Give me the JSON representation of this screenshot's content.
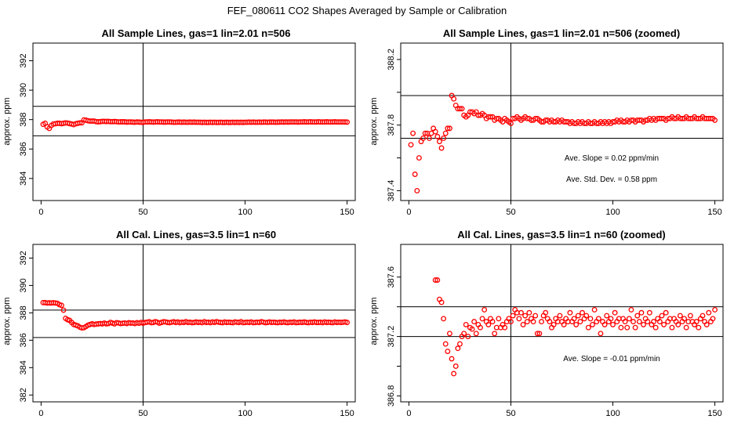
{
  "suptitle": "FEF_080611  CO2 Shapes Averaged by Sample or Calibration",
  "chart_data": [
    {
      "type": "scatter",
      "title": "All Sample Lines, gas=1 lin=2.01 n=506",
      "ylabel": "approx. ppm",
      "xlim": [
        -4,
        154
      ],
      "ylim": [
        382.5,
        393.2
      ],
      "xticks": [
        0,
        50,
        100,
        150
      ],
      "yticks": [
        384,
        386,
        388,
        390,
        392
      ],
      "vline": 50,
      "hlines": [
        386.9,
        388.9
      ],
      "annotations": [],
      "color": "#ff0000",
      "x": [
        1,
        2,
        3,
        4,
        5,
        6,
        7,
        8,
        9,
        10,
        11,
        12,
        13,
        14,
        15,
        16,
        17,
        18,
        19,
        20,
        21,
        22,
        23,
        24,
        25,
        26,
        27,
        28,
        29,
        30,
        31,
        32,
        33,
        34,
        35,
        36,
        37,
        38,
        39,
        40,
        41,
        42,
        43,
        44,
        45,
        46,
        47,
        48,
        49,
        50,
        51,
        52,
        53,
        54,
        55,
        56,
        57,
        58,
        59,
        60,
        61,
        62,
        63,
        64,
        65,
        66,
        67,
        68,
        69,
        70,
        71,
        72,
        73,
        74,
        75,
        76,
        77,
        78,
        79,
        80,
        81,
        82,
        83,
        84,
        85,
        86,
        87,
        88,
        89,
        90,
        91,
        92,
        93,
        94,
        95,
        96,
        97,
        98,
        99,
        100,
        101,
        102,
        103,
        104,
        105,
        106,
        107,
        108,
        109,
        110,
        111,
        112,
        113,
        114,
        115,
        116,
        117,
        118,
        119,
        120,
        121,
        122,
        123,
        124,
        125,
        126,
        127,
        128,
        129,
        130,
        131,
        132,
        133,
        134,
        135,
        136,
        137,
        138,
        139,
        140,
        141,
        142,
        143,
        144,
        145,
        146,
        147,
        148,
        149,
        150
      ],
      "y": [
        387.68,
        387.75,
        387.5,
        387.4,
        387.6,
        387.7,
        387.72,
        387.75,
        387.75,
        387.72,
        387.75,
        387.78,
        387.76,
        387.73,
        387.7,
        387.66,
        387.72,
        387.75,
        387.78,
        387.78,
        387.98,
        387.96,
        387.92,
        387.9,
        387.9,
        387.9,
        387.86,
        387.85,
        387.86,
        387.88,
        387.88,
        387.87,
        387.88,
        387.86,
        387.86,
        387.87,
        387.86,
        387.84,
        387.85,
        387.85,
        387.85,
        387.83,
        387.84,
        387.84,
        387.83,
        387.82,
        387.84,
        387.83,
        387.82,
        387.81,
        387.84,
        387.84,
        387.85,
        387.84,
        387.83,
        387.84,
        387.85,
        387.84,
        387.84,
        387.83,
        387.83,
        387.84,
        387.84,
        387.83,
        387.82,
        387.82,
        387.83,
        387.83,
        387.82,
        387.83,
        387.82,
        387.82,
        387.83,
        387.82,
        387.83,
        387.82,
        387.82,
        387.82,
        387.81,
        387.82,
        387.81,
        387.81,
        387.82,
        387.81,
        387.82,
        387.81,
        387.81,
        387.82,
        387.81,
        387.81,
        387.82,
        387.81,
        387.81,
        387.82,
        387.81,
        387.82,
        387.81,
        387.82,
        387.81,
        387.82,
        387.82,
        387.83,
        387.82,
        387.83,
        387.82,
        387.82,
        387.83,
        387.82,
        387.83,
        387.83,
        387.82,
        387.83,
        387.83,
        387.83,
        387.82,
        387.83,
        387.83,
        387.84,
        387.83,
        387.84,
        387.83,
        387.84,
        387.84,
        387.84,
        387.84,
        387.83,
        387.84,
        387.84,
        387.85,
        387.84,
        387.84,
        387.85,
        387.84,
        387.84,
        387.84,
        387.85,
        387.84,
        387.84,
        387.84,
        387.85,
        387.84,
        387.84,
        387.84,
        387.85,
        387.84,
        387.84,
        387.84,
        387.84,
        387.84,
        387.83
      ]
    },
    {
      "type": "scatter",
      "title": "All Sample Lines, gas=1 lin=2.01 n=506 (zoomed)",
      "ylabel": "approx. ppm",
      "xlim": [
        -4,
        154
      ],
      "ylim": [
        387.34,
        388.3
      ],
      "xticks": [
        0,
        50,
        100,
        150
      ],
      "yticks": [
        387.4,
        387.6,
        387.8,
        388.0,
        388.2
      ],
      "ytick_labels": [
        "387.4",
        "",
        "387.8",
        "",
        "388.2"
      ],
      "vline": 50,
      "hlines": [
        387.72,
        387.98
      ],
      "annotations": [
        "Ave. Slope =  0.02  ppm/min",
        "Ave. Std. Dev. =  0.58  ppm"
      ],
      "color": "#ff0000",
      "x": [
        1,
        2,
        3,
        4,
        5,
        6,
        7,
        8,
        9,
        10,
        11,
        12,
        13,
        14,
        15,
        16,
        17,
        18,
        19,
        20,
        21,
        22,
        23,
        24,
        25,
        26,
        27,
        28,
        29,
        30,
        31,
        32,
        33,
        34,
        35,
        36,
        37,
        38,
        39,
        40,
        41,
        42,
        43,
        44,
        45,
        46,
        47,
        48,
        49,
        50,
        51,
        52,
        53,
        54,
        55,
        56,
        57,
        58,
        59,
        60,
        61,
        62,
        63,
        64,
        65,
        66,
        67,
        68,
        69,
        70,
        71,
        72,
        73,
        74,
        75,
        76,
        77,
        78,
        79,
        80,
        81,
        82,
        83,
        84,
        85,
        86,
        87,
        88,
        89,
        90,
        91,
        92,
        93,
        94,
        95,
        96,
        97,
        98,
        99,
        100,
        101,
        102,
        103,
        104,
        105,
        106,
        107,
        108,
        109,
        110,
        111,
        112,
        113,
        114,
        115,
        116,
        117,
        118,
        119,
        120,
        121,
        122,
        123,
        124,
        125,
        126,
        127,
        128,
        129,
        130,
        131,
        132,
        133,
        134,
        135,
        136,
        137,
        138,
        139,
        140,
        141,
        142,
        143,
        144,
        145,
        146,
        147,
        148,
        149,
        150
      ],
      "y": [
        387.68,
        387.75,
        387.5,
        387.4,
        387.6,
        387.7,
        387.72,
        387.75,
        387.75,
        387.72,
        387.75,
        387.78,
        387.76,
        387.73,
        387.7,
        387.66,
        387.72,
        387.75,
        387.78,
        387.78,
        387.98,
        387.96,
        387.92,
        387.9,
        387.9,
        387.9,
        387.86,
        387.85,
        387.86,
        387.88,
        387.88,
        387.87,
        387.88,
        387.86,
        387.86,
        387.87,
        387.86,
        387.84,
        387.85,
        387.85,
        387.85,
        387.83,
        387.84,
        387.84,
        387.83,
        387.82,
        387.84,
        387.83,
        387.82,
        387.81,
        387.84,
        387.84,
        387.85,
        387.84,
        387.83,
        387.84,
        387.85,
        387.84,
        387.84,
        387.83,
        387.83,
        387.84,
        387.84,
        387.83,
        387.82,
        387.82,
        387.83,
        387.83,
        387.82,
        387.83,
        387.82,
        387.82,
        387.83,
        387.82,
        387.83,
        387.82,
        387.82,
        387.82,
        387.81,
        387.82,
        387.81,
        387.81,
        387.82,
        387.81,
        387.82,
        387.81,
        387.81,
        387.82,
        387.81,
        387.81,
        387.82,
        387.81,
        387.81,
        387.82,
        387.81,
        387.82,
        387.81,
        387.82,
        387.81,
        387.82,
        387.82,
        387.83,
        387.82,
        387.83,
        387.82,
        387.82,
        387.83,
        387.82,
        387.83,
        387.83,
        387.82,
        387.83,
        387.83,
        387.83,
        387.82,
        387.83,
        387.83,
        387.84,
        387.83,
        387.84,
        387.83,
        387.84,
        387.84,
        387.84,
        387.84,
        387.83,
        387.84,
        387.84,
        387.85,
        387.84,
        387.84,
        387.85,
        387.84,
        387.84,
        387.84,
        387.85,
        387.84,
        387.84,
        387.84,
        387.85,
        387.84,
        387.84,
        387.84,
        387.85,
        387.84,
        387.84,
        387.84,
        387.84,
        387.84,
        387.83
      ]
    },
    {
      "type": "scatter",
      "title": "All Cal. Lines, gas=3.5 lin=1 n=60",
      "ylabel": "approx. ppm",
      "xlim": [
        -4,
        154
      ],
      "ylim": [
        381.5,
        393.0
      ],
      "xticks": [
        0,
        50,
        100,
        150
      ],
      "yticks": [
        382,
        384,
        386,
        388,
        390,
        392
      ],
      "vline": 50,
      "hlines": [
        386.2,
        388.2
      ],
      "annotations": [],
      "color": "#ff0000",
      "x": [
        1,
        2,
        3,
        4,
        5,
        6,
        7,
        8,
        9,
        10,
        11,
        12,
        13,
        14,
        15,
        16,
        17,
        18,
        19,
        20,
        21,
        22,
        23,
        24,
        25,
        26,
        27,
        28,
        29,
        30,
        31,
        32,
        33,
        34,
        35,
        36,
        37,
        38,
        39,
        40,
        41,
        42,
        43,
        44,
        45,
        46,
        47,
        48,
        49,
        50,
        51,
        52,
        53,
        54,
        55,
        56,
        57,
        58,
        59,
        60,
        61,
        62,
        63,
        64,
        65,
        66,
        67,
        68,
        69,
        70,
        71,
        72,
        73,
        74,
        75,
        76,
        77,
        78,
        79,
        80,
        81,
        82,
        83,
        84,
        85,
        86,
        87,
        88,
        89,
        90,
        91,
        92,
        93,
        94,
        95,
        96,
        97,
        98,
        99,
        100,
        101,
        102,
        103,
        104,
        105,
        106,
        107,
        108,
        109,
        110,
        111,
        112,
        113,
        114,
        115,
        116,
        117,
        118,
        119,
        120,
        121,
        122,
        123,
        124,
        125,
        126,
        127,
        128,
        129,
        130,
        131,
        132,
        133,
        134,
        135,
        136,
        137,
        138,
        139,
        140,
        141,
        142,
        143,
        144,
        145,
        146,
        147,
        148,
        149,
        150
      ],
      "y": [
        388.75,
        388.75,
        388.72,
        388.73,
        388.72,
        388.74,
        388.72,
        388.7,
        388.6,
        388.55,
        388.2,
        387.6,
        387.5,
        387.45,
        387.3,
        387.15,
        387.1,
        387.05,
        386.95,
        386.9,
        386.92,
        387.0,
        387.1,
        387.15,
        387.2,
        387.15,
        387.18,
        387.2,
        387.22,
        387.2,
        387.25,
        387.2,
        387.22,
        387.3,
        387.25,
        387.2,
        387.28,
        387.26,
        387.22,
        387.24,
        387.26,
        387.22,
        387.28,
        387.25,
        387.26,
        387.22,
        387.28,
        387.24,
        387.3,
        387.25,
        387.3,
        387.32,
        387.35,
        387.28,
        387.3,
        387.36,
        387.32,
        387.25,
        387.3,
        387.35,
        387.34,
        387.3,
        387.28,
        387.32,
        387.35,
        387.3,
        387.34,
        387.28,
        387.32,
        387.3,
        387.36,
        387.3,
        387.32,
        387.28,
        387.3,
        387.34,
        387.3,
        387.32,
        387.28,
        387.36,
        387.3,
        387.32,
        387.28,
        387.34,
        387.3,
        387.36,
        387.32,
        387.3,
        387.28,
        387.34,
        387.3,
        387.32,
        387.3,
        387.28,
        387.34,
        387.32,
        387.3,
        387.36,
        387.28,
        387.3,
        387.32,
        387.3,
        387.34,
        387.28,
        387.3,
        387.32,
        387.3,
        387.36,
        387.32,
        387.28,
        387.3,
        387.34,
        387.3,
        387.32,
        387.3,
        387.28,
        387.32,
        387.3,
        387.34,
        387.3,
        387.28,
        387.32,
        387.3,
        387.34,
        387.28,
        387.3,
        387.32,
        387.3,
        387.34,
        387.3,
        387.28,
        387.32,
        387.3,
        387.34,
        387.3,
        387.3,
        387.32,
        387.28,
        387.34,
        387.3,
        387.32,
        387.3,
        387.28,
        387.34,
        387.3,
        387.32,
        387.3,
        387.32,
        387.34,
        387.3
      ]
    },
    {
      "type": "scatter",
      "title": "All Cal. Lines, gas=3.5 lin=1 n=60 (zoomed)",
      "ylabel": "approx. ppm",
      "xlim": [
        -4,
        154
      ],
      "ylim": [
        386.76,
        387.82
      ],
      "xticks": [
        0,
        50,
        100,
        150
      ],
      "yticks": [
        386.8,
        387.0,
        387.2,
        387.4,
        387.6
      ],
      "ytick_labels": [
        "386.8",
        "",
        "387.2",
        "",
        "387.6"
      ],
      "vline": 50,
      "hlines": [
        387.2,
        387.4
      ],
      "annotations": [
        "Ave. Slope =  -0.01  ppm/min"
      ],
      "color": "#ff0000",
      "x": [
        13,
        14,
        15,
        16,
        17,
        18,
        19,
        20,
        21,
        22,
        23,
        24,
        25,
        26,
        27,
        28,
        29,
        30,
        31,
        32,
        33,
        34,
        35,
        36,
        37,
        38,
        39,
        40,
        41,
        42,
        43,
        44,
        45,
        46,
        47,
        48,
        49,
        50,
        51,
        52,
        53,
        54,
        55,
        56,
        57,
        58,
        59,
        60,
        61,
        62,
        63,
        64,
        65,
        66,
        67,
        68,
        69,
        70,
        71,
        72,
        73,
        74,
        75,
        76,
        77,
        78,
        79,
        80,
        81,
        82,
        83,
        84,
        85,
        86,
        87,
        88,
        89,
        90,
        91,
        92,
        93,
        94,
        95,
        96,
        97,
        98,
        99,
        100,
        101,
        102,
        103,
        104,
        105,
        106,
        107,
        108,
        109,
        110,
        111,
        112,
        113,
        114,
        115,
        116,
        117,
        118,
        119,
        120,
        121,
        122,
        123,
        124,
        125,
        126,
        127,
        128,
        129,
        130,
        131,
        132,
        133,
        134,
        135,
        136,
        137,
        138,
        139,
        140,
        141,
        142,
        143,
        144,
        145,
        146,
        147,
        148,
        149,
        150
      ],
      "y": [
        387.58,
        387.58,
        387.45,
        387.43,
        387.32,
        387.15,
        387.1,
        387.22,
        387.05,
        386.95,
        387.0,
        387.12,
        387.15,
        387.2,
        387.22,
        387.28,
        387.2,
        387.26,
        387.25,
        387.3,
        387.22,
        387.28,
        387.26,
        387.32,
        387.38,
        387.3,
        387.28,
        387.32,
        387.3,
        387.22,
        387.26,
        387.32,
        387.26,
        387.28,
        387.26,
        387.3,
        387.32,
        387.3,
        387.34,
        387.38,
        387.36,
        387.32,
        387.36,
        387.28,
        387.34,
        387.3,
        387.36,
        387.32,
        387.3,
        387.34,
        387.22,
        387.22,
        387.3,
        387.34,
        387.36,
        387.32,
        387.3,
        387.26,
        387.28,
        387.32,
        387.3,
        387.34,
        387.3,
        387.28,
        387.32,
        387.3,
        387.36,
        387.3,
        387.32,
        387.28,
        387.34,
        387.3,
        387.36,
        387.32,
        387.34,
        387.26,
        387.32,
        387.28,
        387.38,
        387.3,
        387.32,
        387.22,
        387.3,
        387.28,
        387.34,
        387.3,
        387.32,
        387.28,
        387.36,
        387.3,
        387.32,
        387.26,
        387.32,
        387.3,
        387.26,
        387.32,
        387.38,
        387.3,
        387.26,
        387.34,
        387.3,
        387.36,
        387.28,
        387.32,
        387.3,
        387.36,
        387.28,
        387.3,
        387.26,
        387.32,
        387.3,
        387.34,
        387.28,
        387.36,
        387.3,
        387.32,
        387.26,
        387.32,
        387.3,
        387.28,
        387.34,
        387.3,
        387.32,
        387.26,
        387.3,
        387.34,
        387.3,
        387.28,
        387.3,
        387.26,
        387.32,
        387.34,
        387.3,
        387.28,
        387.36,
        387.3,
        387.32,
        387.38
      ]
    }
  ]
}
